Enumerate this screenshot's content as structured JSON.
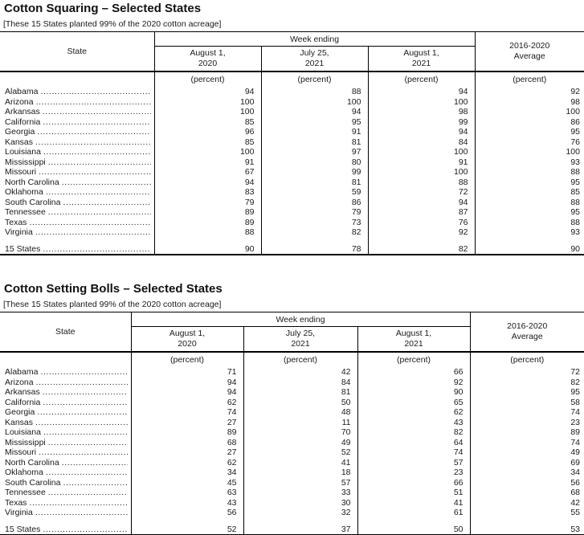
{
  "tables": [
    {
      "title": "Cotton Squaring – Selected States",
      "note": "[These 15 States planted 99% of the 2020 cotton acreage]",
      "header": {
        "state_label": "State",
        "week_ending_label": "Week ending",
        "columns": [
          "August 1,\n2020",
          "July 25,\n2021",
          "August 1,\n2021"
        ],
        "average_label": "2016-2020\nAverage",
        "unit_label": "(percent)"
      },
      "rows": [
        {
          "state": "Alabama",
          "values": [
            94,
            88,
            94,
            92
          ]
        },
        {
          "state": "Arizona",
          "values": [
            100,
            100,
            100,
            98
          ]
        },
        {
          "state": "Arkansas",
          "values": [
            100,
            94,
            98,
            100
          ]
        },
        {
          "state": "California",
          "values": [
            85,
            95,
            99,
            86
          ]
        },
        {
          "state": "Georgia",
          "values": [
            96,
            91,
            94,
            95
          ]
        },
        {
          "state": "Kansas",
          "values": [
            85,
            81,
            84,
            76
          ]
        },
        {
          "state": "Louisiana",
          "values": [
            100,
            97,
            100,
            100
          ]
        },
        {
          "state": "Mississippi",
          "values": [
            91,
            80,
            91,
            93
          ]
        },
        {
          "state": "Missouri",
          "values": [
            67,
            99,
            100,
            88
          ]
        },
        {
          "state": "North Carolina",
          "values": [
            94,
            81,
            88,
            95
          ]
        },
        {
          "state": "Oklahoma",
          "values": [
            83,
            59,
            72,
            85
          ]
        },
        {
          "state": "South Carolina",
          "values": [
            79,
            86,
            94,
            88
          ]
        },
        {
          "state": "Tennessee",
          "values": [
            89,
            79,
            87,
            95
          ]
        },
        {
          "state": "Texas",
          "values": [
            89,
            73,
            76,
            88
          ]
        },
        {
          "state": "Virginia",
          "values": [
            88,
            82,
            92,
            93
          ]
        }
      ],
      "total": {
        "state": "15 States",
        "values": [
          90,
          78,
          82,
          90
        ]
      }
    },
    {
      "title": "Cotton Setting Bolls – Selected States",
      "note": "[These 15 States planted 99% of the 2020 cotton acreage]",
      "header": {
        "state_label": "State",
        "week_ending_label": "Week ending",
        "columns": [
          "August 1,\n2020",
          "July 25,\n2021",
          "August 1,\n2021"
        ],
        "average_label": "2016-2020\nAverage",
        "unit_label": "(percent)"
      },
      "rows": [
        {
          "state": "Alabama",
          "values": [
            71,
            42,
            66,
            72
          ]
        },
        {
          "state": "Arizona",
          "values": [
            94,
            84,
            92,
            82
          ]
        },
        {
          "state": "Arkansas",
          "values": [
            94,
            81,
            90,
            95
          ]
        },
        {
          "state": "California",
          "values": [
            62,
            50,
            65,
            58
          ]
        },
        {
          "state": "Georgia",
          "values": [
            74,
            48,
            62,
            74
          ]
        },
        {
          "state": "Kansas",
          "values": [
            27,
            11,
            43,
            23
          ]
        },
        {
          "state": "Louisiana",
          "values": [
            89,
            70,
            82,
            89
          ]
        },
        {
          "state": "Mississippi",
          "values": [
            68,
            49,
            64,
            74
          ]
        },
        {
          "state": "Missouri",
          "values": [
            27,
            52,
            74,
            49
          ]
        },
        {
          "state": "North Carolina",
          "values": [
            62,
            41,
            57,
            69
          ]
        },
        {
          "state": "Oklahoma",
          "values": [
            34,
            18,
            23,
            34
          ]
        },
        {
          "state": "South Carolina",
          "values": [
            45,
            57,
            66,
            56
          ]
        },
        {
          "state": "Tennessee",
          "values": [
            63,
            33,
            51,
            68
          ]
        },
        {
          "state": "Texas",
          "values": [
            43,
            30,
            41,
            42
          ]
        },
        {
          "state": "Virginia",
          "values": [
            56,
            32,
            61,
            55
          ]
        }
      ],
      "total": {
        "state": "15 States",
        "values": [
          52,
          37,
          50,
          53
        ]
      }
    }
  ]
}
